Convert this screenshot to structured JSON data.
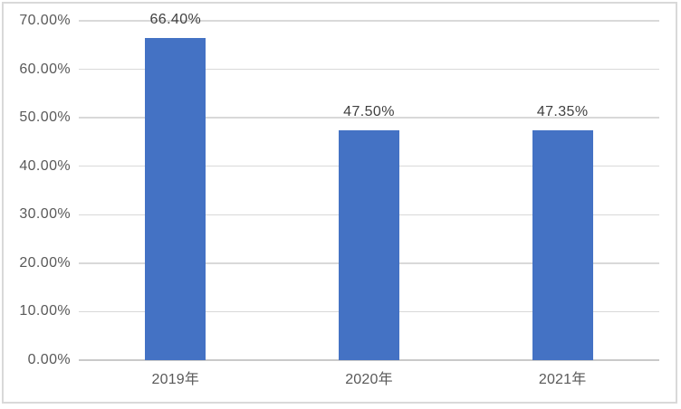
{
  "chart_data": {
    "type": "bar",
    "title": "",
    "categories": [
      "2019年",
      "2020年",
      "2021年"
    ],
    "values": [
      66.4,
      47.5,
      47.35
    ],
    "data_labels": [
      "66.40%",
      "47.50%",
      "47.35%"
    ],
    "xlabel": "",
    "ylabel": "",
    "y_axis": {
      "min": 0,
      "max": 70,
      "tick_values": [
        0,
        10,
        20,
        30,
        40,
        50,
        60,
        70
      ],
      "tick_labels": [
        "0.00%",
        "10.00%",
        "20.00%",
        "30.00%",
        "40.00%",
        "50.00%",
        "60.00%",
        "70.00%"
      ]
    },
    "grid": true,
    "legend": "none",
    "colors": {
      "bar": "#4472C4",
      "gridline": "#D9D9D9",
      "axis_line": "#C9C9C9",
      "tick_label": "#595959",
      "data_label": "#404040",
      "category_label": "#595959",
      "chart_border": "#D9D9D9",
      "background": "#FFFFFF"
    }
  }
}
